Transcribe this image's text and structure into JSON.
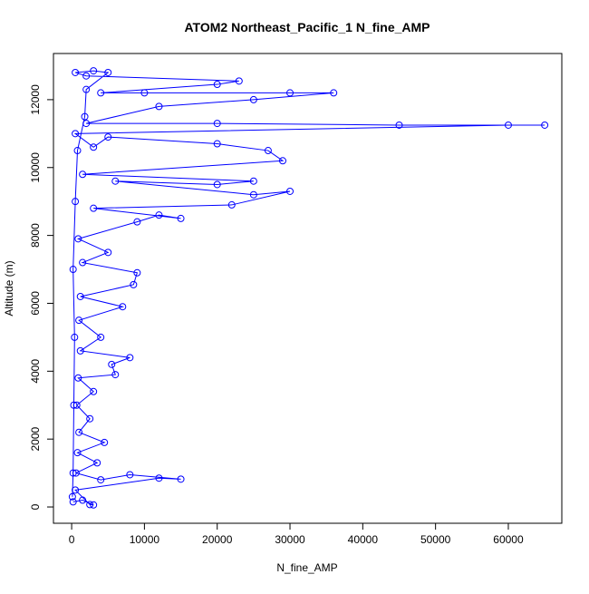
{
  "chart_data": {
    "type": "line",
    "title": "ATOM2 Northeast_Pacific_1 N_fine_AMP",
    "x_label": "N_fine_AMP",
    "y_label": "Altitude (m)",
    "xlim": [
      -2500,
      67350
    ],
    "ylim": [
      -480,
      13360
    ],
    "xticks": [
      0,
      10000,
      20000,
      30000,
      40000,
      50000,
      60000
    ],
    "yticks": [
      0,
      2000,
      4000,
      6000,
      8000,
      10000,
      12000
    ],
    "series": [
      {
        "color": "#0000ff",
        "x": [
          200,
          1500,
          3000,
          2500,
          500,
          12000,
          15000,
          8000,
          4000,
          600,
          3500,
          800,
          4500,
          1000,
          2500,
          700,
          3000,
          900,
          6000,
          5500,
          8000,
          1200,
          4000,
          1000,
          7000,
          1200,
          8500,
          9000,
          1500,
          5000,
          900,
          9000,
          12000,
          15000,
          3000,
          22000,
          30000,
          25000,
          6000,
          20000,
          25000,
          1500,
          29000,
          27000,
          20000,
          5000,
          3000,
          500,
          60000,
          65000,
          45000,
          20000,
          2000,
          12000,
          25000,
          36000,
          30000,
          10000,
          4000,
          20000,
          23000,
          2000,
          500,
          3000,
          5000,
          2000,
          1800,
          800,
          500,
          200,
          400,
          300,
          200,
          100
        ],
        "values": [
          150,
          200,
          60,
          70,
          500,
          850,
          820,
          950,
          800,
          1000,
          1300,
          1600,
          1900,
          2200,
          2600,
          3000,
          3400,
          3800,
          3900,
          4200,
          4400,
          4600,
          5000,
          5500,
          5900,
          6200,
          6550,
          6900,
          7200,
          7500,
          7900,
          8400,
          8600,
          8500,
          8800,
          8900,
          9300,
          9200,
          9600,
          9500,
          9600,
          9800,
          10200,
          10500,
          10700,
          10900,
          10600,
          11000,
          11250,
          11250,
          11250,
          11300,
          11300,
          11800,
          12000,
          12200,
          12200,
          12200,
          12200,
          12450,
          12550,
          12700,
          12800,
          12850,
          12800,
          12300,
          11500,
          10500,
          9000,
          7000,
          5000,
          3000,
          1000,
          300
        ]
      }
    ]
  }
}
